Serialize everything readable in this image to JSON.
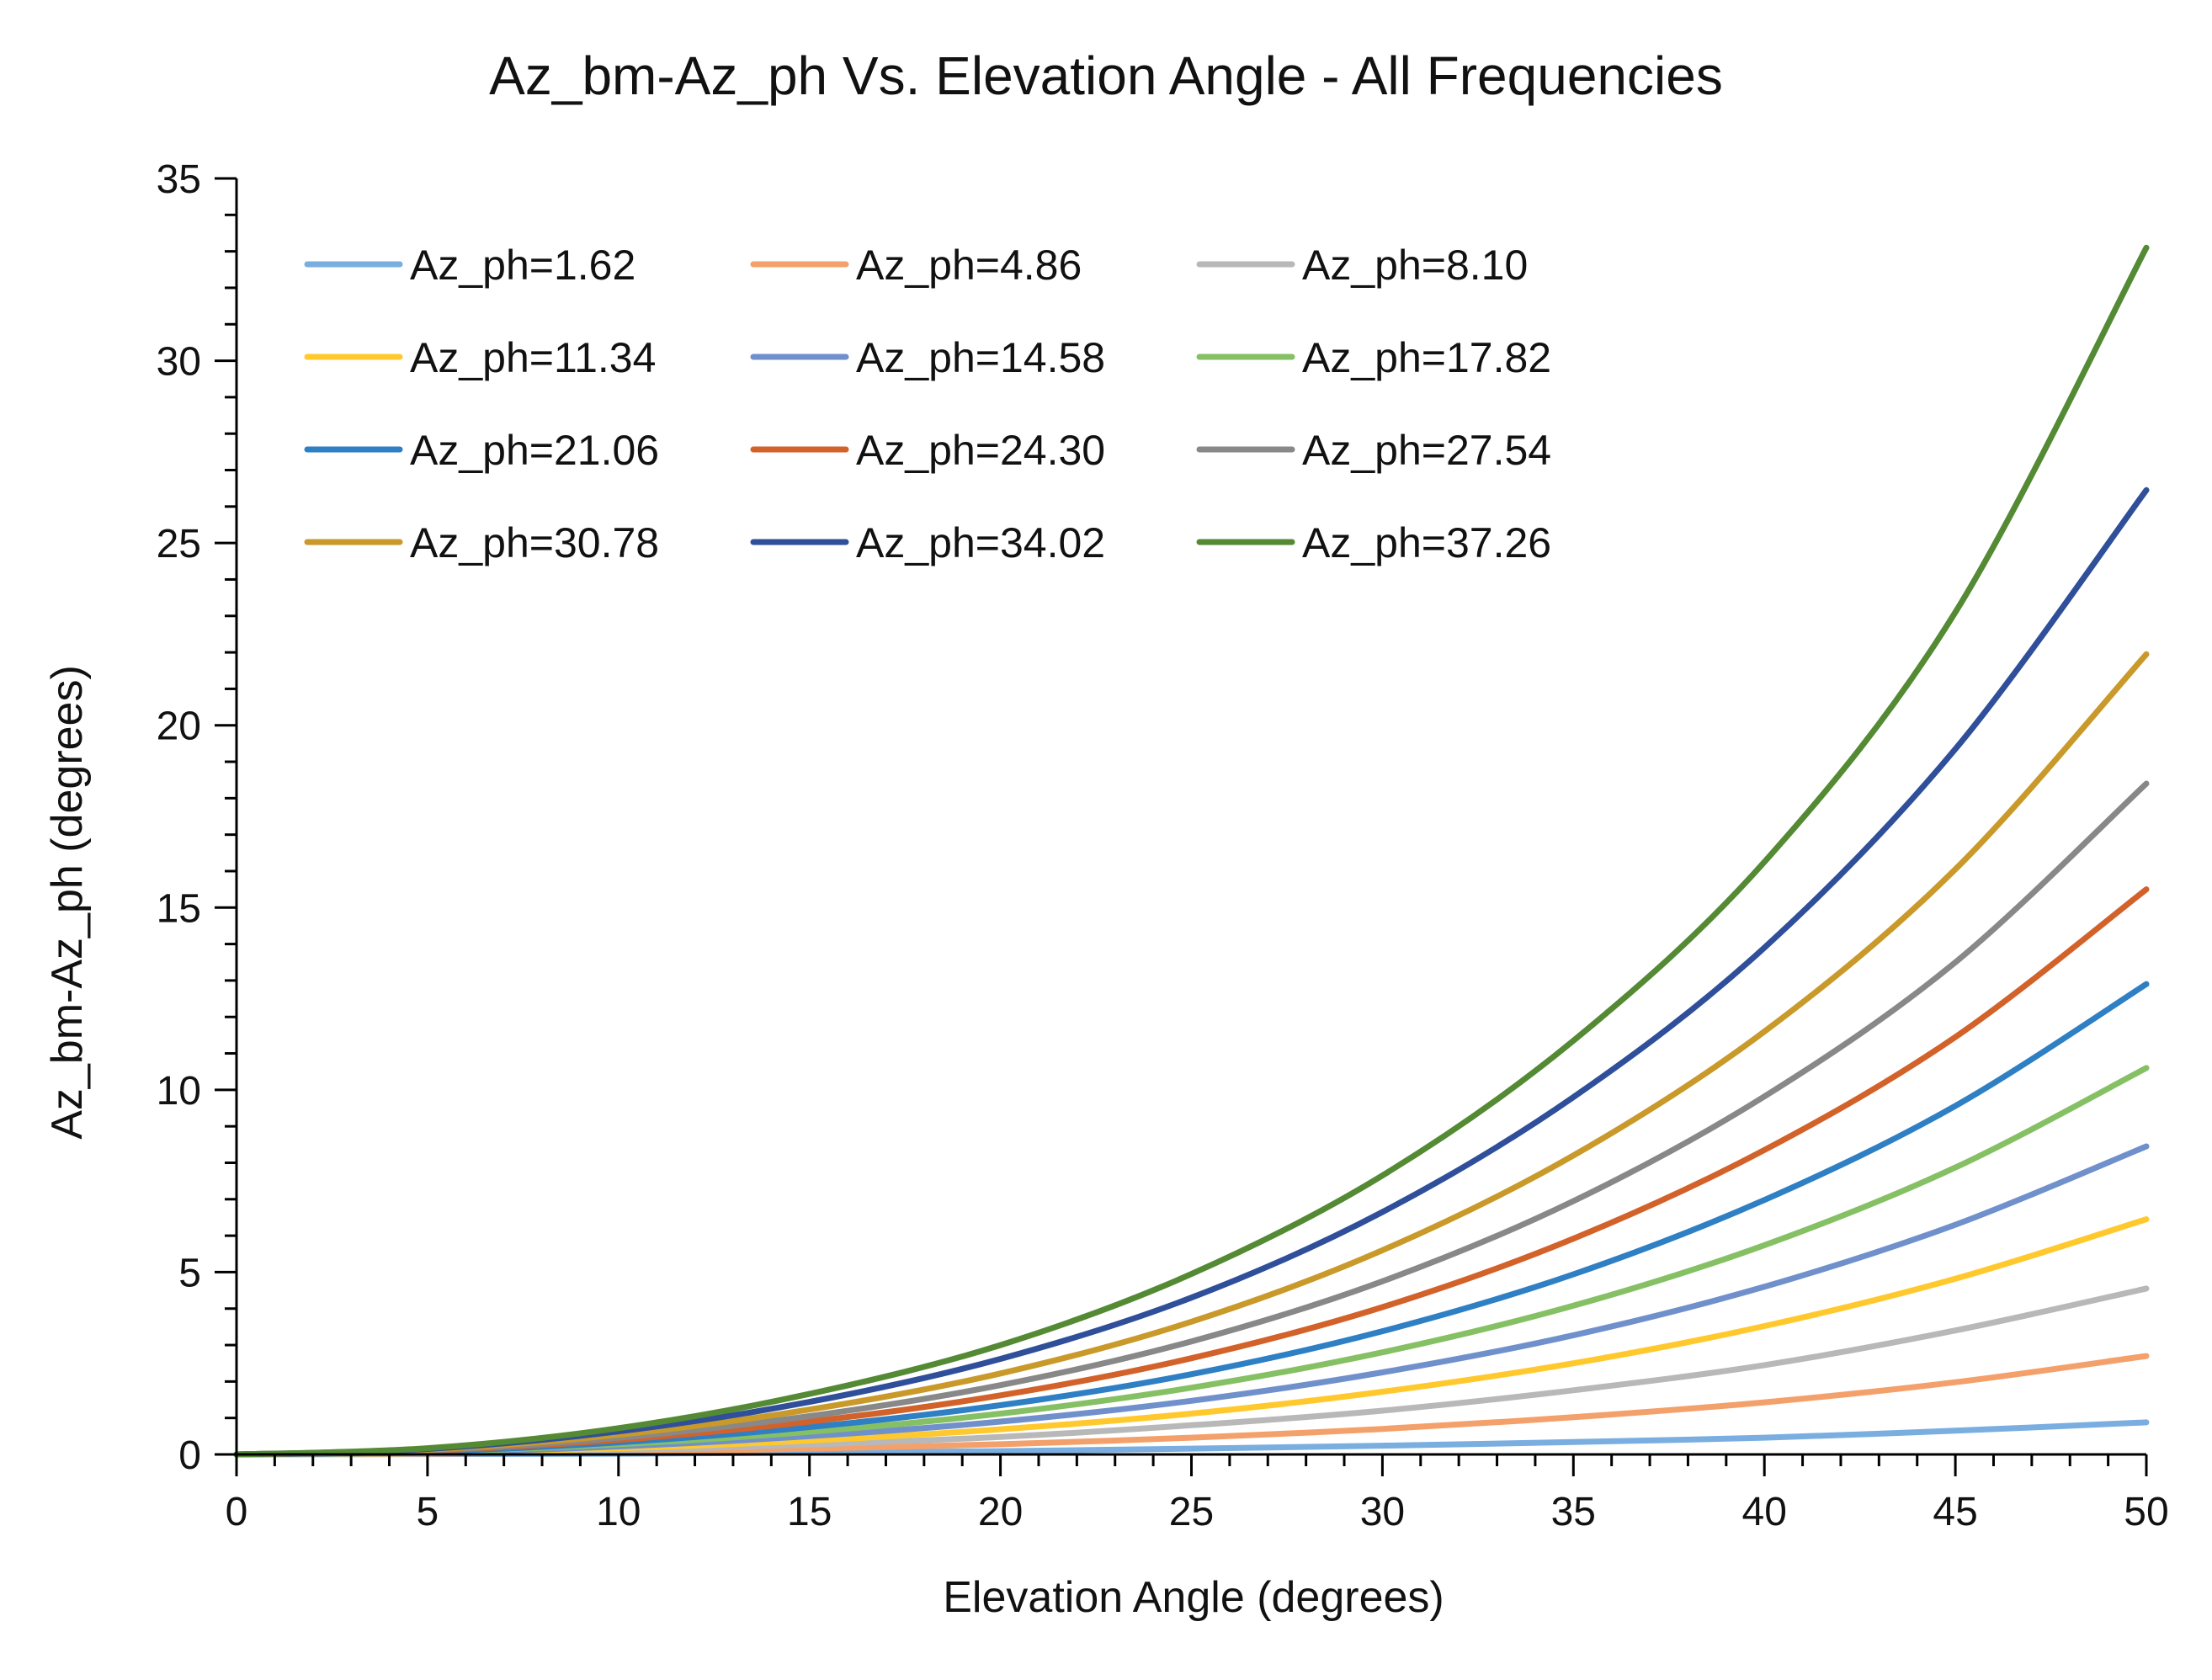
{
  "chart_data": {
    "type": "line",
    "title": "Az_bm-Az_ph Vs. Elevation Angle - All Frequencies",
    "xlabel": "Elevation Angle (degrees)",
    "ylabel": "Az_bm-Az_ph  (degrees)",
    "xlim": [
      0,
      50
    ],
    "ylim": [
      0,
      35
    ],
    "x_ticks": [
      0,
      5,
      10,
      15,
      20,
      25,
      30,
      35,
      40,
      45,
      50
    ],
    "y_ticks": [
      0,
      5,
      10,
      15,
      20,
      25,
      30,
      35
    ],
    "x_tick_labels": [
      "0",
      "5",
      "10",
      "15",
      "20",
      "25",
      "30",
      "35",
      "40",
      "45",
      "50"
    ],
    "y_tick_labels": [
      "0",
      "5",
      "10",
      "15",
      "20",
      "25",
      "30",
      "35"
    ],
    "grid": false,
    "legend_position": "top-left",
    "x": [
      0,
      5,
      10,
      15,
      20,
      25,
      30,
      35,
      40,
      45,
      50
    ],
    "series": [
      {
        "name": "Az_ph=1.62",
        "color": "#7aaee0",
        "values": [
          0,
          0.01,
          0.02,
          0.05,
          0.09,
          0.16,
          0.24,
          0.34,
          0.46,
          0.65,
          0.88
        ]
      },
      {
        "name": "Az_ph=4.86",
        "color": "#f4a06a",
        "values": [
          0,
          0.02,
          0.07,
          0.16,
          0.28,
          0.46,
          0.7,
          1.02,
          1.43,
          1.98,
          2.7
        ]
      },
      {
        "name": "Az_ph=8.10",
        "color": "#b8b8b8",
        "values": [
          0,
          0.03,
          0.12,
          0.27,
          0.48,
          0.8,
          1.2,
          1.76,
          2.45,
          3.4,
          4.55
        ]
      },
      {
        "name": "Az_ph=11.34",
        "color": "#ffc92e",
        "values": [
          0,
          0.04,
          0.17,
          0.38,
          0.69,
          1.12,
          1.72,
          2.5,
          3.52,
          4.82,
          6.45
        ]
      },
      {
        "name": "Az_ph=14.58",
        "color": "#7090cc",
        "values": [
          0,
          0.05,
          0.22,
          0.5,
          0.9,
          1.47,
          2.25,
          3.27,
          4.6,
          6.3,
          8.45
        ]
      },
      {
        "name": "Az_ph=17.82",
        "color": "#86c064",
        "values": [
          0,
          0.07,
          0.28,
          0.62,
          1.12,
          1.83,
          2.8,
          4.08,
          5.74,
          7.87,
          10.6
        ]
      },
      {
        "name": "Az_ph=21.06",
        "color": "#2e7fc4",
        "values": [
          0,
          0.08,
          0.33,
          0.75,
          1.35,
          2.2,
          3.38,
          4.94,
          6.98,
          9.56,
          12.9
        ]
      },
      {
        "name": "Az_ph=24.30",
        "color": "#d2622a",
        "values": [
          0,
          0.1,
          0.4,
          0.9,
          1.62,
          2.64,
          4.04,
          5.92,
          8.35,
          11.45,
          15.5
        ]
      },
      {
        "name": "Az_ph=27.54",
        "color": "#888888",
        "values": [
          0,
          0.11,
          0.46,
          1.05,
          1.9,
          3.1,
          4.75,
          6.95,
          9.82,
          13.5,
          18.4
        ]
      },
      {
        "name": "Az_ph=30.78",
        "color": "#c9992a",
        "values": [
          0,
          0.13,
          0.54,
          1.23,
          2.22,
          3.64,
          5.6,
          8.2,
          11.6,
          16.05,
          21.95
        ]
      },
      {
        "name": "Az_ph=34.02",
        "color": "#2f4f9a",
        "values": [
          0,
          0.15,
          0.63,
          1.44,
          2.62,
          4.3,
          6.65,
          9.8,
          13.9,
          19.35,
          26.45
        ]
      },
      {
        "name": "Az_ph=37.26",
        "color": "#548a34",
        "values": [
          0,
          0.17,
          0.72,
          1.66,
          3.0,
          4.95,
          7.65,
          11.35,
          16.25,
          23.1,
          33.1
        ]
      }
    ]
  }
}
